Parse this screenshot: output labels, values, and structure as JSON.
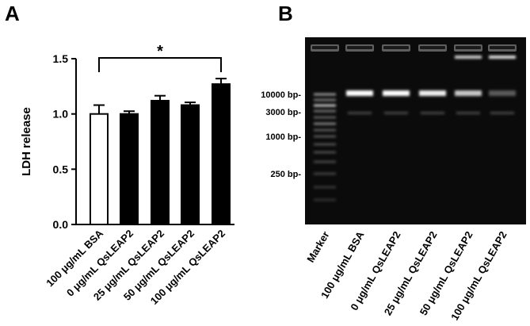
{
  "panels": {
    "a_label": "A",
    "b_label": "B"
  },
  "chart_data": [
    {
      "type": "bar",
      "panel": "A",
      "ylabel": "LDH release",
      "ylim": [
        0.0,
        1.5
      ],
      "yticks": [
        "0.0",
        "0.5",
        "1.0",
        "1.5"
      ],
      "ytick_values": [
        0.0,
        0.5,
        1.0,
        1.5
      ],
      "categories": [
        "100 μg/mL BSA",
        "0 μg/mL QsLEAP2",
        "25 μg/mL QsLEAP2",
        "50 μg/mL QsLEAP2",
        "100 μg/mL QsLEAP2"
      ],
      "values": [
        1.0,
        1.0,
        1.12,
        1.08,
        1.27
      ],
      "errors": [
        0.08,
        0.025,
        0.045,
        0.025,
        0.05
      ],
      "fills": [
        "#ffffff",
        "#000000",
        "#000000",
        "#000000",
        "#000000"
      ],
      "significance": {
        "from": 0,
        "to": 4,
        "label": "*"
      },
      "grid": false
    }
  ],
  "gel": {
    "size_markers": [
      "10000 bp",
      "3000 bp",
      "1000 bp",
      "250 bp"
    ],
    "lanes": [
      "Marker",
      "100 μg/mL BSA",
      "0 μg/mL QsLEAP2",
      "25 μg/mL QsLEAP2",
      "50 μg/mL QsLEAP2",
      "100 μg/mL QsLEAP2"
    ],
    "background": "#0b0b0b"
  }
}
